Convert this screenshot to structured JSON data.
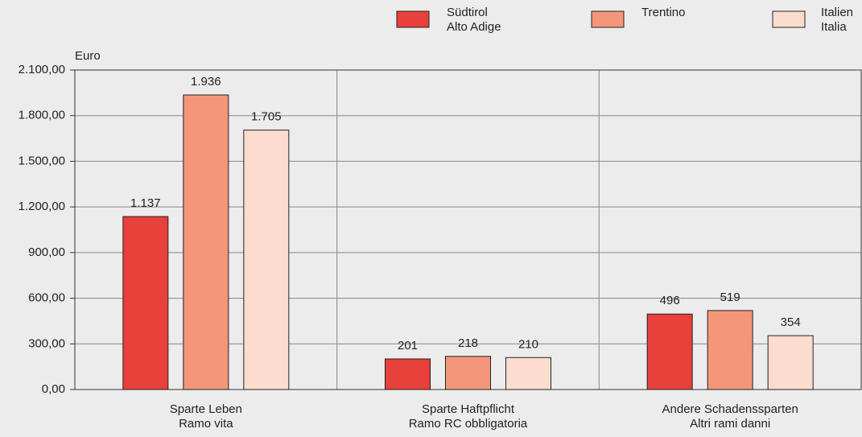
{
  "chart_data": {
    "type": "bar",
    "y_label": "Euro",
    "categories": [
      [
        "Sparte Leben",
        "Ramo vita"
      ],
      [
        "Sparte Haftpflicht",
        "Ramo RC obbligatoria"
      ],
      [
        "Andere Schadenssparten",
        "Altri rami danni"
      ]
    ],
    "series": [
      {
        "name": [
          "Südtirol",
          "Alto Adige"
        ],
        "color": "#e8403a",
        "values": [
          1137,
          201,
          496
        ],
        "value_labels": [
          "1.137",
          "201",
          "496"
        ]
      },
      {
        "name": [
          "Trentino"
        ],
        "color": "#f4967a",
        "values": [
          1936,
          218,
          519
        ],
        "value_labels": [
          "1.936",
          "218",
          "519"
        ]
      },
      {
        "name": [
          "Italien",
          "Italia"
        ],
        "color": "#fcdccf",
        "values": [
          1705,
          210,
          354
        ],
        "value_labels": [
          "1.705",
          "210",
          "354"
        ]
      }
    ],
    "ylim": [
      0,
      2100
    ],
    "yticks": [
      {
        "value": 0,
        "label": "0,00"
      },
      {
        "value": 300,
        "label": "300,00"
      },
      {
        "value": 600,
        "label": "600,00"
      },
      {
        "value": 900,
        "label": "900,00"
      },
      {
        "value": 1200,
        "label": "1.200,00"
      },
      {
        "value": 1500,
        "label": "1.500,00"
      },
      {
        "value": 1800,
        "label": "1.800,00"
      },
      {
        "value": 2100,
        "label": "2.100,00"
      }
    ],
    "grid": true
  }
}
